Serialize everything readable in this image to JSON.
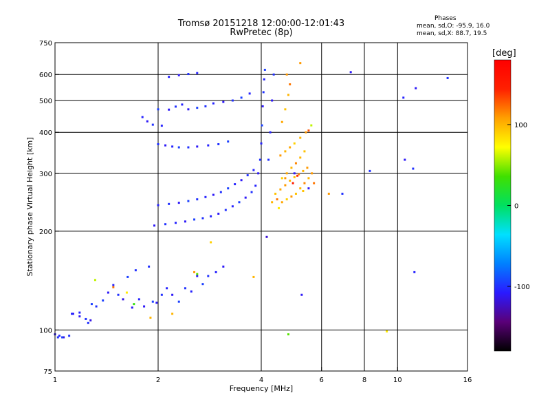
{
  "header": {
    "title_line1": "Tromsø 20151218 12:00:00-12:01:43",
    "title_line2": "RwPretec (8p)",
    "stats_header": "Phases",
    "stats_o": "mean, sd,O: -95.9, 16.0",
    "stats_x": "mean, sd,X: 88.7, 19.5"
  },
  "colorbar": {
    "label": "[deg]",
    "range": [
      -180,
      180
    ],
    "ticks": [
      100,
      0,
      -100
    ],
    "tick_labels": [
      "100",
      "0",
      "-100"
    ],
    "colors": [
      "#000000",
      "#5a0078",
      "#2a1aff",
      "#0080ff",
      "#00e0ff",
      "#00e060",
      "#40e000",
      "#ffff00",
      "#ffa000",
      "#ff2000",
      "#ff0000"
    ]
  },
  "chart_data": {
    "type": "scatter",
    "title": "Tromsø 20151218 12:00:00-12:01:43",
    "subtitle": "RwPretec (8p)",
    "xlabel": "Frequency [MHz]",
    "ylabel": "Stationary phase Virtual Height [km]",
    "x_scale": "log",
    "y_scale": "log",
    "xlim": [
      1,
      16
    ],
    "ylim": [
      75,
      750
    ],
    "x_ticks": [
      1,
      2,
      4,
      6,
      8,
      10,
      16
    ],
    "x_tick_labels": [
      "1",
      "2",
      "4",
      "6",
      "8",
      "10",
      "16"
    ],
    "x_gridlines": [
      2,
      4,
      6,
      8,
      10
    ],
    "y_ticks": [
      75,
      100,
      200,
      300,
      400,
      500,
      600,
      750
    ],
    "y_tick_labels": [
      "75",
      "100",
      "200",
      "300",
      "400",
      "500",
      "600",
      "750"
    ],
    "y_gridlines": [
      100,
      200,
      300,
      400,
      500,
      600
    ],
    "grid": true,
    "color_variable": "phase (deg)",
    "series": [
      {
        "name": "O",
        "points": [
          [
            1.0,
            97,
            -110
          ],
          [
            1.03,
            96,
            -105
          ],
          [
            1.06,
            95,
            -115
          ],
          [
            1.1,
            96,
            -100
          ],
          [
            1.13,
            112,
            -110
          ],
          [
            1.18,
            113,
            -105
          ],
          [
            1.23,
            108,
            -100
          ],
          [
            1.27,
            107,
            -115
          ],
          [
            1.32,
            118,
            -100
          ],
          [
            1.38,
            123,
            -95
          ],
          [
            1.43,
            130,
            -110
          ],
          [
            1.48,
            137,
            -105
          ],
          [
            1.53,
            128,
            -100
          ],
          [
            1.58,
            124,
            -115
          ],
          [
            1.63,
            145,
            -95
          ],
          [
            1.68,
            117,
            -110
          ],
          [
            1.72,
            152,
            -100
          ],
          [
            1.76,
            124,
            -105
          ],
          [
            1.82,
            118,
            -110
          ],
          [
            1.88,
            156,
            -100
          ],
          [
            1.93,
            122,
            -95
          ],
          [
            1.98,
            121,
            -110
          ],
          [
            2.05,
            128,
            -100
          ],
          [
            2.12,
            134,
            -105
          ],
          [
            2.2,
            128,
            -110
          ],
          [
            2.3,
            122,
            -95
          ],
          [
            2.4,
            134,
            -100
          ],
          [
            2.5,
            131,
            -105
          ],
          [
            2.6,
            146,
            -110
          ],
          [
            2.7,
            138,
            -95
          ],
          [
            2.8,
            146,
            -100
          ],
          [
            2.95,
            150,
            -105
          ],
          [
            3.1,
            156,
            -110
          ],
          [
            1.8,
            445,
            -105
          ],
          [
            1.86,
            432,
            -110
          ],
          [
            1.93,
            422,
            -100
          ],
          [
            2.0,
            470,
            -95
          ],
          [
            2.05,
            419,
            -105
          ],
          [
            2.15,
            469,
            -110
          ],
          [
            2.25,
            479,
            -100
          ],
          [
            2.35,
            486,
            -105
          ],
          [
            2.45,
            470,
            -110
          ],
          [
            2.6,
            475,
            -95
          ],
          [
            2.75,
            480,
            -100
          ],
          [
            2.9,
            490,
            -105
          ],
          [
            3.1,
            495,
            -110
          ],
          [
            3.3,
            500,
            -100
          ],
          [
            3.5,
            510,
            -95
          ],
          [
            3.7,
            525,
            -105
          ],
          [
            2.0,
            368,
            -100
          ],
          [
            2.1,
            365,
            -110
          ],
          [
            2.2,
            362,
            -105
          ],
          [
            2.3,
            360,
            -95
          ],
          [
            2.45,
            360,
            -100
          ],
          [
            2.6,
            362,
            -110
          ],
          [
            2.8,
            365,
            -105
          ],
          [
            3.0,
            368,
            -100
          ],
          [
            3.2,
            375,
            -95
          ],
          [
            2.15,
            590,
            -105
          ],
          [
            2.3,
            597,
            -110
          ],
          [
            2.45,
            602,
            -100
          ],
          [
            2.6,
            606,
            -105
          ],
          [
            1.95,
            208,
            -110
          ],
          [
            2.1,
            210,
            -100
          ],
          [
            2.25,
            212,
            -105
          ],
          [
            2.4,
            214,
            -110
          ],
          [
            2.55,
            217,
            -95
          ],
          [
            2.7,
            219,
            -100
          ],
          [
            2.85,
            222,
            -105
          ],
          [
            3.0,
            226,
            -110
          ],
          [
            3.15,
            232,
            -100
          ],
          [
            3.3,
            238,
            -105
          ],
          [
            3.45,
            245,
            -95
          ],
          [
            3.6,
            253,
            -110
          ],
          [
            3.75,
            263,
            -100
          ],
          [
            3.85,
            275,
            -105
          ],
          [
            3.92,
            300,
            -110
          ],
          [
            3.97,
            330,
            -100
          ],
          [
            4.0,
            370,
            -105
          ],
          [
            4.02,
            420,
            -95
          ],
          [
            4.04,
            480,
            -110
          ],
          [
            4.06,
            530,
            -100
          ],
          [
            4.08,
            580,
            -105
          ],
          [
            4.1,
            620,
            -95
          ],
          [
            2.0,
            240,
            -105
          ],
          [
            2.15,
            242,
            -100
          ],
          [
            2.3,
            244,
            -110
          ],
          [
            2.45,
            247,
            -95
          ],
          [
            2.6,
            250,
            -100
          ],
          [
            2.75,
            254,
            -105
          ],
          [
            2.9,
            258,
            -110
          ],
          [
            3.05,
            263,
            -100
          ],
          [
            3.2,
            270,
            -95
          ],
          [
            3.35,
            278,
            -105
          ],
          [
            3.5,
            286,
            -110
          ],
          [
            3.65,
            296,
            -100
          ],
          [
            3.8,
            307,
            -105
          ],
          [
            4.2,
            330,
            -100
          ],
          [
            4.25,
            400,
            -105
          ],
          [
            4.3,
            500,
            -110
          ],
          [
            4.35,
            600,
            -100
          ],
          [
            1.02,
            95,
            -100
          ],
          [
            1.05,
            95,
            -95
          ],
          [
            1.12,
            112,
            -105
          ],
          [
            1.18,
            110,
            -110
          ],
          [
            1.25,
            105,
            -100
          ],
          [
            1.28,
            120,
            -95
          ],
          [
            1.31,
            142,
            60
          ],
          [
            1.48,
            135,
            120
          ],
          [
            1.62,
            130,
            80
          ],
          [
            1.7,
            120,
            30
          ],
          [
            1.9,
            109,
            100
          ],
          [
            2.2,
            112,
            100
          ],
          [
            2.55,
            150,
            110
          ],
          [
            2.6,
            148,
            40
          ],
          [
            2.85,
            185,
            90
          ],
          [
            3.8,
            145,
            100
          ],
          [
            4.15,
            192,
            -120
          ],
          [
            4.7,
            290,
            110
          ],
          [
            5.0,
            300,
            -110
          ],
          [
            5.3,
            265,
            95
          ],
          [
            5.5,
            270,
            -110
          ],
          [
            5.7,
            280,
            120
          ],
          [
            6.3,
            260,
            110
          ],
          [
            6.9,
            260,
            -100
          ],
          [
            7.3,
            610,
            -110
          ],
          [
            8.3,
            305,
            -100
          ],
          [
            9.3,
            99,
            80
          ],
          [
            10.4,
            510,
            -105
          ],
          [
            10.5,
            330,
            -110
          ],
          [
            11.1,
            310,
            -100
          ],
          [
            11.2,
            150,
            -105
          ],
          [
            11.3,
            545,
            -110
          ],
          [
            14.0,
            585,
            -100
          ],
          [
            5.25,
            128,
            -110
          ],
          [
            4.8,
            97,
            40
          ],
          [
            5.2,
            650,
            110
          ]
        ]
      },
      {
        "name": "X",
        "points": [
          [
            4.3,
            245,
            100
          ],
          [
            4.45,
            250,
            120
          ],
          [
            4.6,
            245,
            105
          ],
          [
            4.75,
            250,
            90
          ],
          [
            4.9,
            255,
            110
          ],
          [
            5.05,
            260,
            95
          ],
          [
            5.2,
            270,
            100
          ],
          [
            5.35,
            280,
            115
          ],
          [
            5.5,
            290,
            100
          ],
          [
            5.62,
            300,
            110
          ],
          [
            4.4,
            260,
            95
          ],
          [
            4.55,
            268,
            105
          ],
          [
            4.7,
            276,
            110
          ],
          [
            4.85,
            285,
            100
          ],
          [
            5.0,
            292,
            95
          ],
          [
            5.15,
            298,
            115
          ],
          [
            5.3,
            305,
            100
          ],
          [
            5.45,
            312,
            110
          ],
          [
            4.6,
            290,
            90
          ],
          [
            4.75,
            300,
            105
          ],
          [
            4.9,
            312,
            100
          ],
          [
            5.05,
            322,
            115
          ],
          [
            5.2,
            335,
            100
          ],
          [
            5.35,
            350,
            95
          ],
          [
            4.55,
            340,
            110
          ],
          [
            4.7,
            350,
            100
          ],
          [
            4.85,
            360,
            105
          ],
          [
            5.0,
            370,
            90
          ],
          [
            5.2,
            385,
            100
          ],
          [
            5.4,
            400,
            110
          ],
          [
            4.6,
            430,
            105
          ],
          [
            4.7,
            470,
            95
          ],
          [
            4.8,
            520,
            100
          ],
          [
            4.75,
            600,
            110
          ],
          [
            4.85,
            560,
            120
          ],
          [
            5.5,
            405,
            130
          ],
          [
            5.6,
            420,
            60
          ],
          [
            4.95,
            280,
            150
          ],
          [
            5.1,
            295,
            140
          ],
          [
            4.5,
            235,
            80
          ]
        ]
      }
    ]
  }
}
